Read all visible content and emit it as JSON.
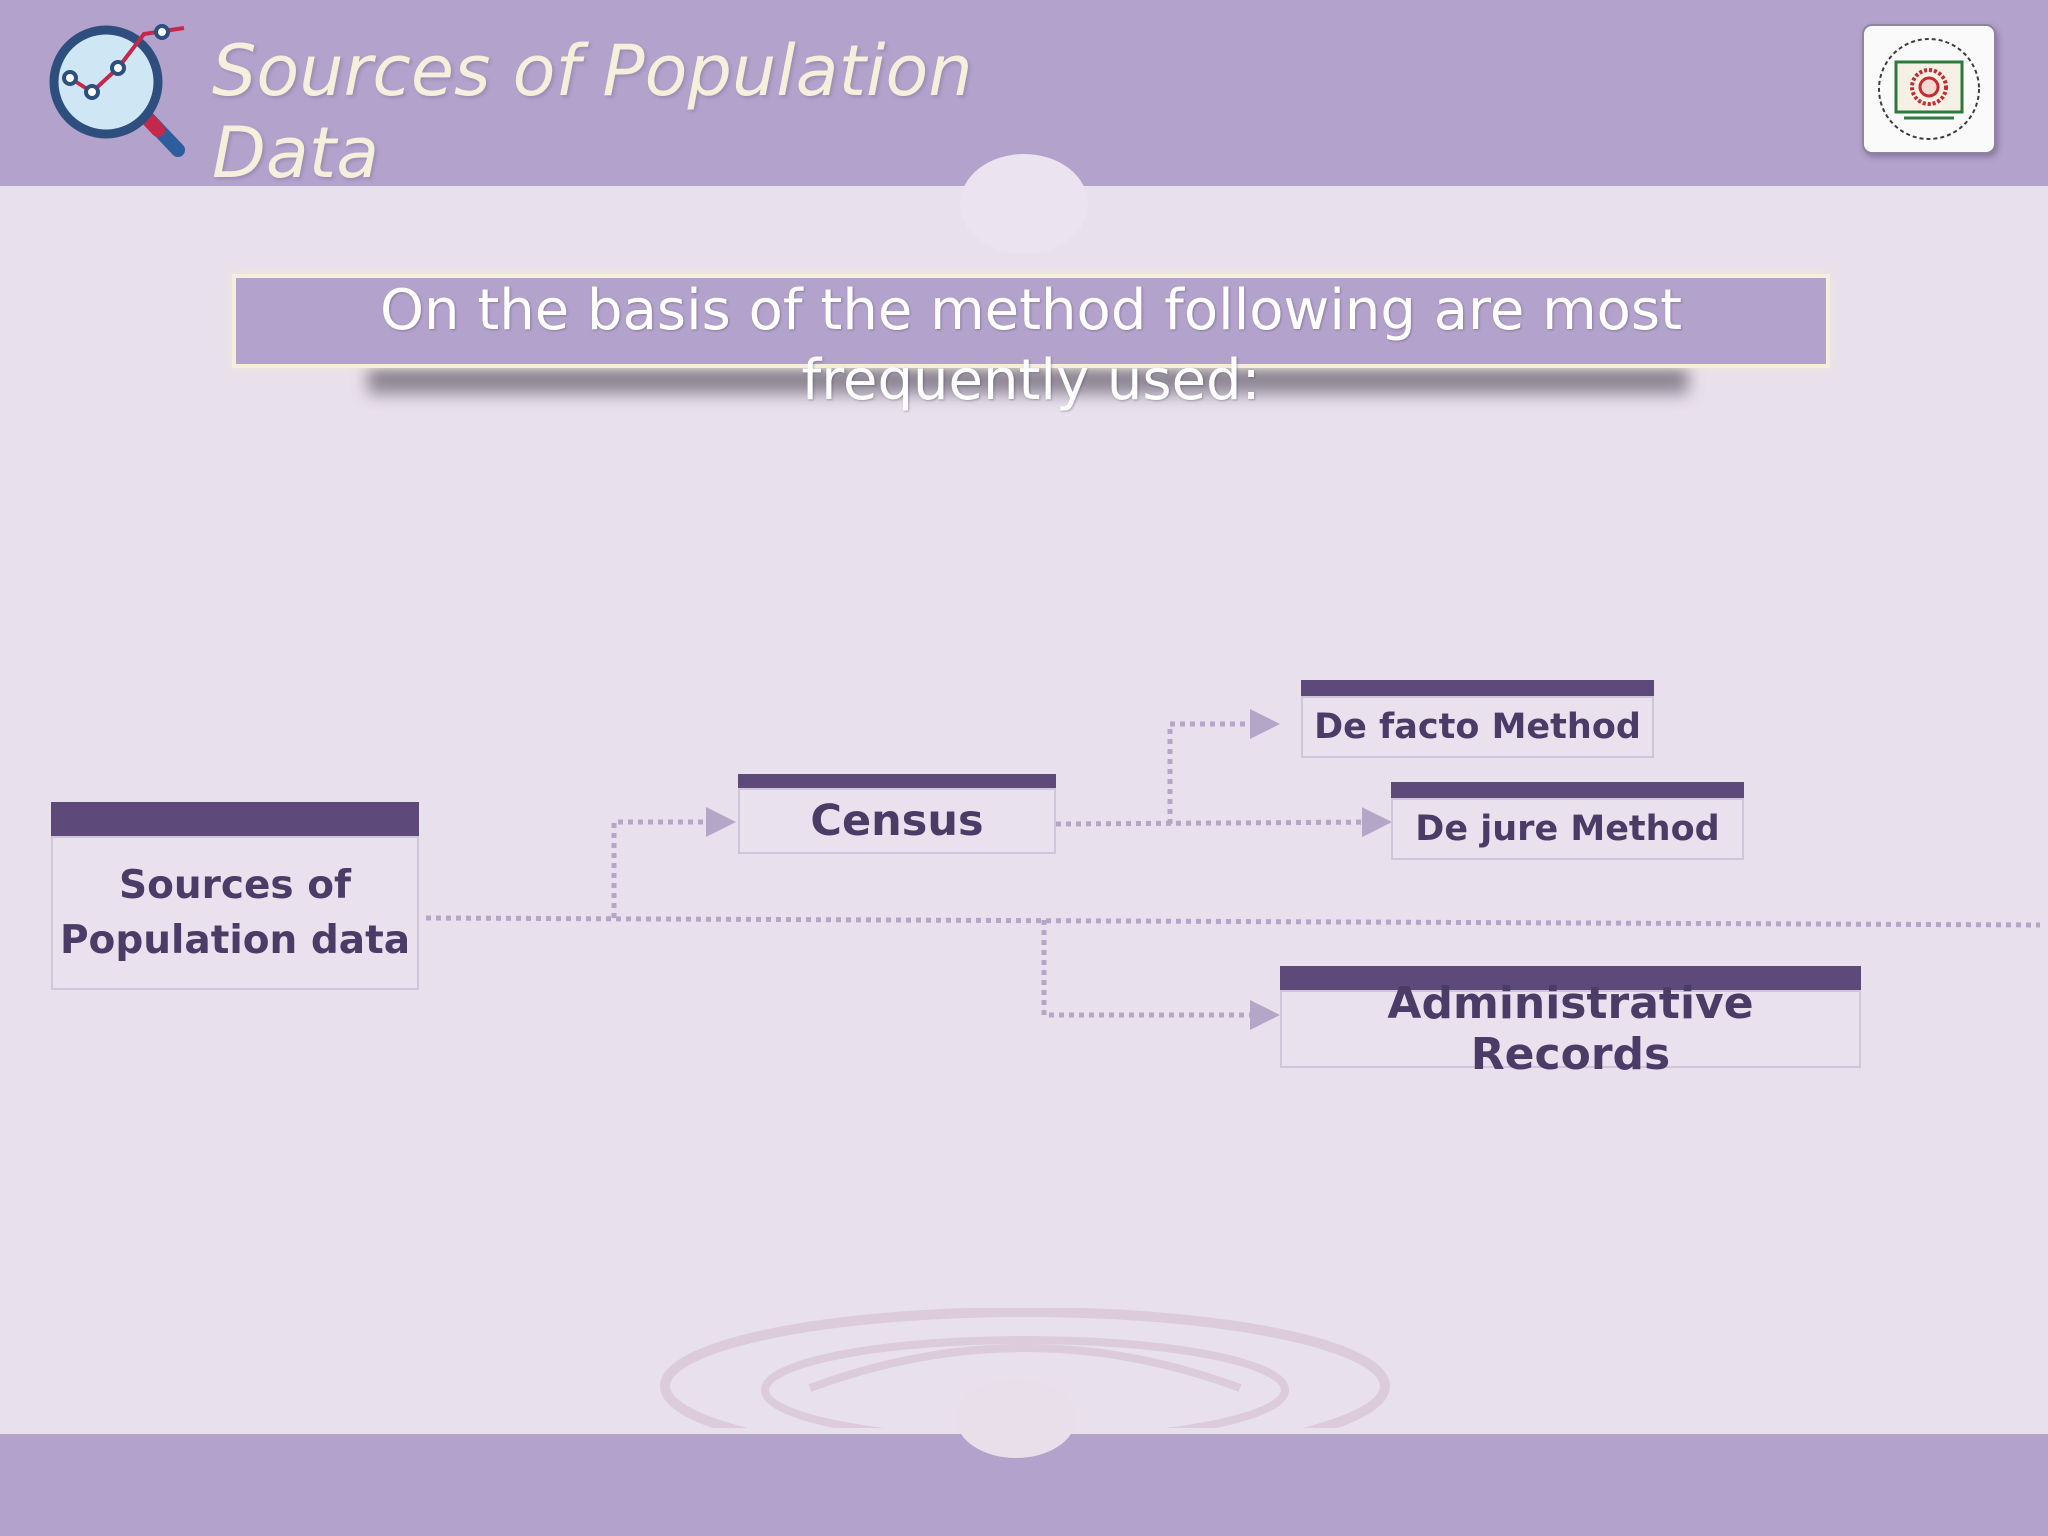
{
  "slide": {
    "title": "Sources of Population Data",
    "banner": "On the basis of the method following are most frequently used:"
  },
  "diagram": {
    "root": "Sources of Population data",
    "census": "Census",
    "de_facto": "De facto Method",
    "de_jure": "De jure Method",
    "admin": "Administrative Records"
  },
  "icons": {
    "title_icon": "magnifier-chart-icon",
    "logo": "university-logo"
  },
  "colors": {
    "band": "#b3a2cb",
    "node_bar": "#5d4a7b",
    "node_text": "#4a3c66",
    "title_text": "#f4f0dc"
  }
}
